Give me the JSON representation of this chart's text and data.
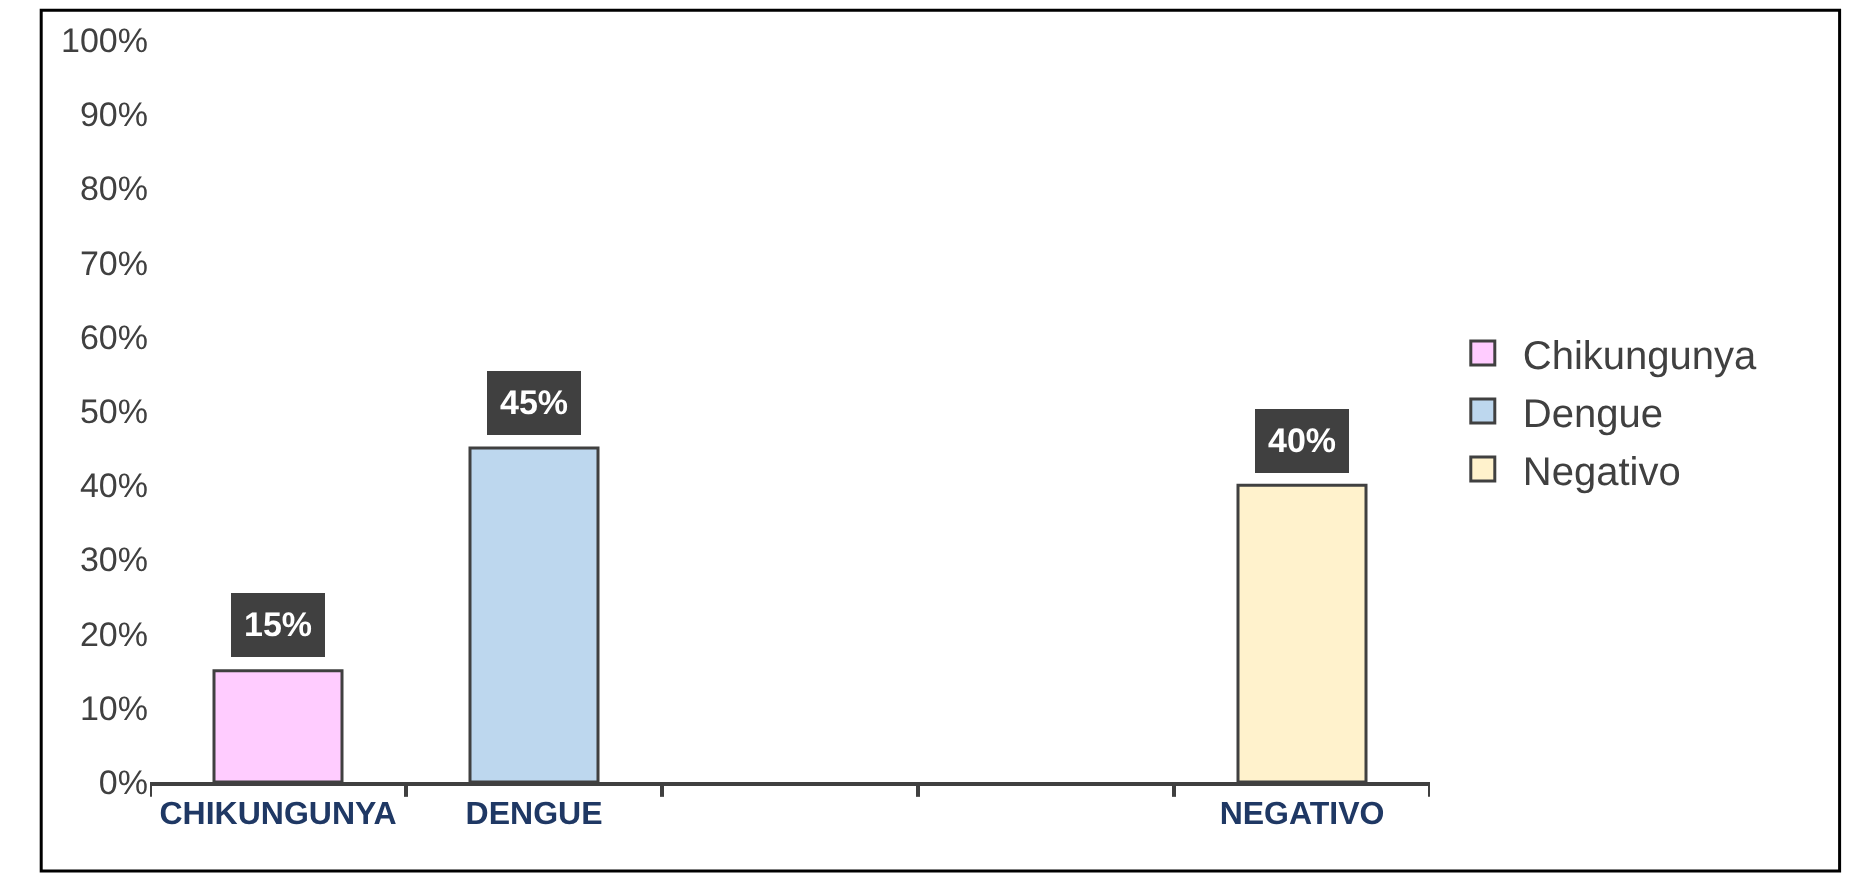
{
  "chart_data": {
    "type": "bar",
    "categories": [
      "CHIKUNGUNYA",
      "DENGUE",
      null,
      null,
      "NEGATIVO"
    ],
    "series": [
      {
        "name": "Chikungunya",
        "color": "#ffccff",
        "values": [
          15,
          null,
          null,
          null,
          null
        ],
        "value_labels": [
          "15%",
          null,
          null,
          null,
          null
        ]
      },
      {
        "name": "Dengue",
        "color": "#bdd7ee",
        "values": [
          null,
          45,
          null,
          null,
          null
        ],
        "value_labels": [
          null,
          "45%",
          null,
          null,
          null
        ]
      },
      {
        "name": "Negativo",
        "color": "#fff2cc",
        "values": [
          null,
          null,
          null,
          null,
          40
        ],
        "value_labels": [
          null,
          null,
          null,
          null,
          "40%"
        ]
      }
    ],
    "ylim": [
      0,
      100
    ],
    "yticks": [
      {
        "value": 0,
        "label": "0%"
      },
      {
        "value": 10,
        "label": "10%"
      },
      {
        "value": 20,
        "label": "20%"
      },
      {
        "value": 30,
        "label": "30%"
      },
      {
        "value": 40,
        "label": "40%"
      },
      {
        "value": 50,
        "label": "50%"
      },
      {
        "value": 60,
        "label": "60%"
      },
      {
        "value": 70,
        "label": "70%"
      },
      {
        "value": 80,
        "label": "80%"
      },
      {
        "value": 90,
        "label": "90%"
      },
      {
        "value": 100,
        "label": "100%"
      }
    ],
    "legend": "right"
  }
}
